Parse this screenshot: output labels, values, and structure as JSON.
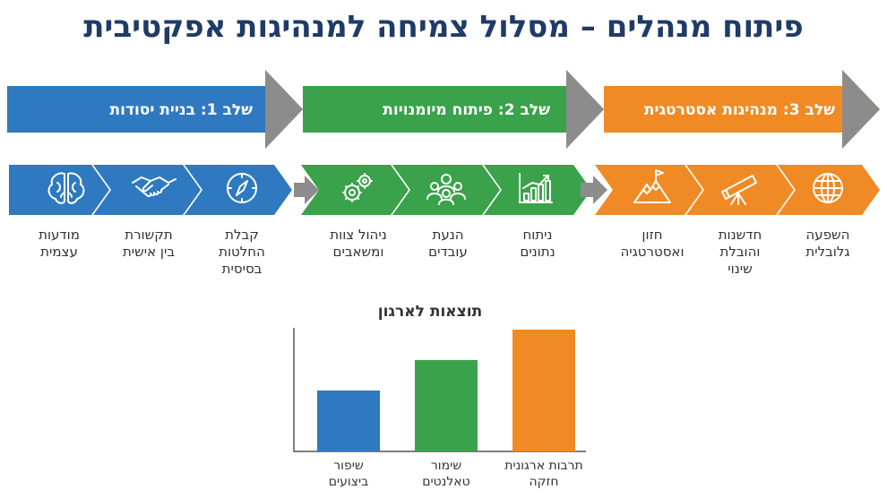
{
  "title": "פיתוח מנהלים – מסלול צמיחה למנהיגות אפקטיבית",
  "colors": {
    "stage1": "#2f79c1",
    "stage2": "#3aa24a",
    "stage3": "#f08a24",
    "connector": "#8c8c8c",
    "titleColor": "#1f3b67"
  },
  "stages": [
    {
      "label": "שלב 1: בניית יסודות",
      "color": "#2f79c1"
    },
    {
      "label": "שלב 2: פיתוח מיומנויות",
      "color": "#3aa24a"
    },
    {
      "label": "שלב 3: מנהיגות אסטרטגית",
      "color": "#f08a24"
    }
  ],
  "skills": [
    {
      "line1": "מודעות",
      "line2": "עצמית",
      "line3": "",
      "icon": "brain-icon"
    },
    {
      "line1": "תקשורת",
      "line2": "בין אישית",
      "line3": "",
      "icon": "handshake-icon"
    },
    {
      "line1": "קבלת",
      "line2": "החלטות",
      "line3": "בסיסית",
      "icon": "compass-icon"
    },
    {
      "line1": "ניהול צוות",
      "line2": "ומשאבים",
      "line3": "",
      "icon": "gears-icon"
    },
    {
      "line1": "הנעת",
      "line2": "עובדים",
      "line3": "",
      "icon": "team-icon"
    },
    {
      "line1": "ניתוח",
      "line2": "נתונים",
      "line3": "",
      "icon": "growth-chart-icon"
    },
    {
      "line1": "חזון",
      "line2": "ואסטרטגיה",
      "line3": "",
      "icon": "mountain-flag-icon"
    },
    {
      "line1": "חדשנות",
      "line2": "והובלת",
      "line3": "שינוי",
      "icon": "telescope-icon"
    },
    {
      "line1": "השפעה",
      "line2": "גלובלית",
      "line3": "",
      "icon": "globe-icon"
    }
  ],
  "chart_data": {
    "type": "bar",
    "title": "תוצאות לארגון",
    "categories": [
      "שיפור ביצועים",
      "שימור טאלנטים",
      "תרבות ארגונית חזקה"
    ],
    "category_lines": [
      [
        "שיפור",
        "ביצועים"
      ],
      [
        "שימור",
        "טאלנטים"
      ],
      [
        "תרבות ארגונית",
        "חזקה"
      ]
    ],
    "values": [
      1.0,
      1.5,
      2.0
    ],
    "colors": [
      "#2f79c1",
      "#3aa24a",
      "#f08a24"
    ],
    "ylim": [
      0,
      2
    ],
    "grid": false,
    "legend": "none"
  }
}
